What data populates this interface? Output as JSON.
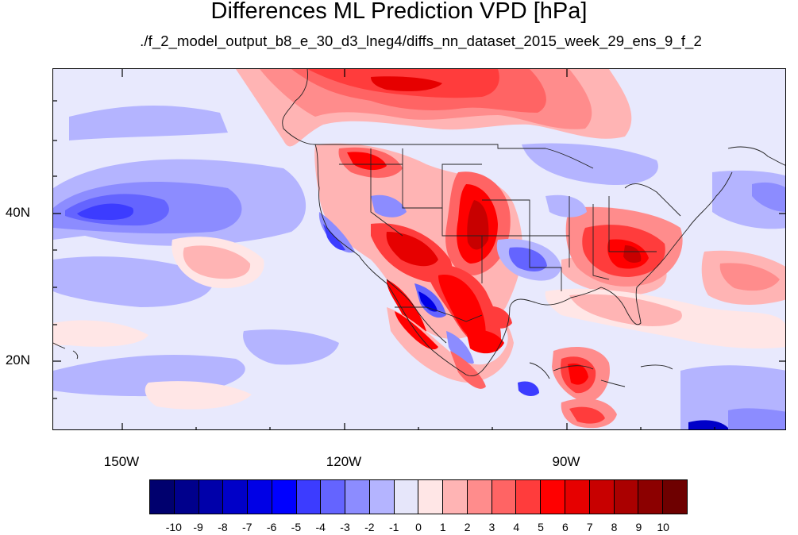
{
  "title": "Differences ML Prediction VPD [hPa]",
  "subtitle": "./f_2_model_output_b8_e_30_d3_lneg4/diffs_nn_dataset_2015_week_29_ens_9_f_2",
  "map": {
    "lat_labels": [
      "40N",
      "20N"
    ],
    "lon_labels": [
      "150W",
      "120W",
      "90W"
    ],
    "projection": "cylindrical equidistant",
    "region": "North America and eastern Pacific"
  },
  "colorbar": {
    "labels": [
      "-10",
      "-9",
      "-8",
      "-7",
      "-6",
      "-5",
      "-4",
      "-3",
      "-2",
      "-1",
      "0",
      "1",
      "2",
      "3",
      "4",
      "5",
      "6",
      "7",
      "8",
      "9",
      "10"
    ],
    "colors": [
      "#00006e",
      "#00008c",
      "#0000aa",
      "#0000c8",
      "#0000e6",
      "#0000ff",
      "#3c3cff",
      "#6464ff",
      "#8c8cff",
      "#b4b4ff",
      "#e6e6fa",
      "#ffe6e6",
      "#ffb4b4",
      "#ff8c8c",
      "#ff6464",
      "#ff3c3c",
      "#ff0000",
      "#e60000",
      "#c80000",
      "#aa0000",
      "#8c0000",
      "#6e0000"
    ]
  }
}
